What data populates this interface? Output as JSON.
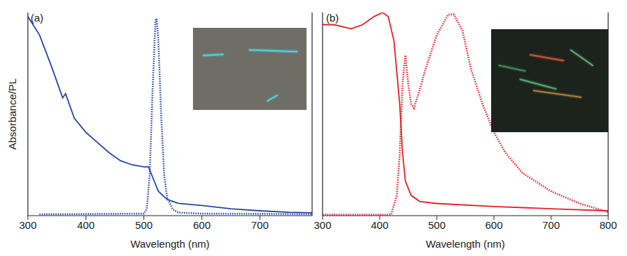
{
  "chart_data": [
    {
      "type": "line",
      "label": "(a)",
      "x_label": "Wavelength (nm)",
      "y_label": "Absorbance/PL",
      "xlim": [
        300,
        790
      ],
      "xticks": [
        300,
        400,
        500,
        600,
        700
      ],
      "ylim": [
        0,
        1
      ],
      "tick_labels": "x",
      "series": [
        {
          "color": "#2646a0",
          "line_style": "solid",
          "x": [
            300,
            320,
            340,
            360,
            365,
            380,
            400,
            420,
            440,
            460,
            480,
            500,
            508,
            515,
            525,
            540,
            560,
            600,
            650,
            700,
            750,
            790
          ],
          "values": [
            0.98,
            0.89,
            0.74,
            0.58,
            0.6,
            0.48,
            0.41,
            0.36,
            0.31,
            0.27,
            0.25,
            0.24,
            0.24,
            0.19,
            0.12,
            0.08,
            0.06,
            0.05,
            0.034,
            0.024,
            0.017,
            0.014
          ]
        },
        {
          "color": "#2646a0",
          "line_style": "dotted",
          "x": [
            320,
            400,
            500,
            505,
            510,
            515,
            520,
            522,
            525,
            530,
            535,
            540,
            550,
            560,
            600,
            700,
            790
          ],
          "values": [
            0.007,
            0.008,
            0.01,
            0.034,
            0.2,
            0.62,
            0.96,
            0.97,
            0.86,
            0.48,
            0.2,
            0.09,
            0.03,
            0.015,
            0.01,
            0.009,
            0.008
          ]
        }
      ]
    },
    {
      "type": "line",
      "label": "(b)",
      "x_label": "Wavelength (nm)",
      "xlim": [
        300,
        800
      ],
      "xticks": [
        300,
        400,
        500,
        600,
        700,
        800
      ],
      "ylim": [
        0,
        1
      ],
      "tick_labels": "x",
      "series": [
        {
          "color": "#e0202a",
          "line_style": "solid",
          "x": [
            300,
            320,
            350,
            370,
            390,
            405,
            415,
            425,
            435,
            440,
            445,
            455,
            470,
            500,
            600,
            700,
            800
          ],
          "values": [
            0.94,
            0.94,
            0.92,
            0.94,
            0.98,
            1.0,
            0.98,
            0.86,
            0.55,
            0.31,
            0.17,
            0.1,
            0.07,
            0.06,
            0.045,
            0.034,
            0.024
          ]
        },
        {
          "color": "#e0202a",
          "line_style": "dotted",
          "x": [
            300,
            420,
            430,
            435,
            440,
            445,
            450,
            455,
            460,
            470,
            480,
            500,
            520,
            530,
            545,
            560,
            580,
            600,
            620,
            650,
            700,
            750,
            800
          ],
          "values": [
            0.005,
            0.005,
            0.1,
            0.3,
            0.65,
            0.79,
            0.65,
            0.55,
            0.53,
            0.62,
            0.72,
            0.89,
            0.99,
            0.99,
            0.91,
            0.72,
            0.55,
            0.41,
            0.31,
            0.21,
            0.12,
            0.06,
            0.017
          ]
        }
      ]
    }
  ]
}
